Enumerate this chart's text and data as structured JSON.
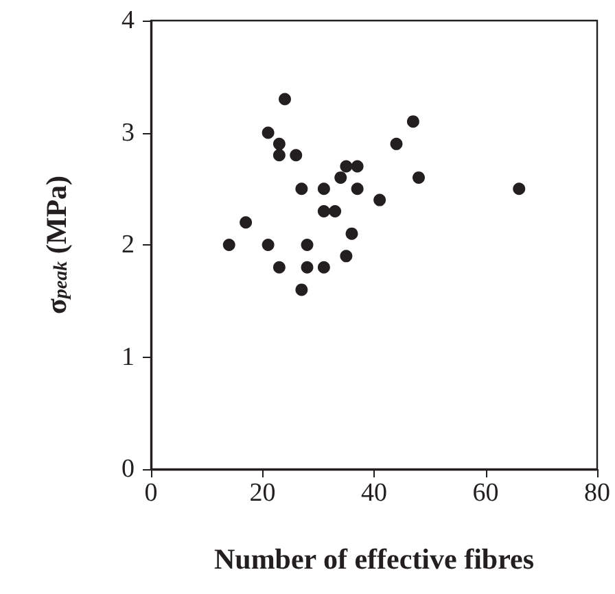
{
  "chart_data": {
    "type": "scatter",
    "xlabel": "Number of effective fibres",
    "ylabel": "σ$_{peak}$ (MPa)",
    "x": [
      14,
      17,
      21,
      21,
      23,
      23,
      23,
      24,
      26,
      27,
      27,
      28,
      28,
      31,
      31,
      31,
      33,
      34,
      35,
      35,
      36,
      37,
      37,
      41,
      44,
      47,
      48,
      66
    ],
    "series": [
      {
        "color": "#231f20",
        "values": [
          2.0,
          2.2,
          3.0,
          2.0,
          2.9,
          2.8,
          1.8,
          3.3,
          2.8,
          2.5,
          1.6,
          2.0,
          1.8,
          2.5,
          2.3,
          1.8,
          2.3,
          2.6,
          2.7,
          1.9,
          2.1,
          2.7,
          2.5,
          2.4,
          2.9,
          3.1,
          2.6,
          2.5
        ]
      }
    ],
    "xlim": [
      0,
      80
    ],
    "xticks": [
      0,
      20,
      40,
      60,
      80
    ],
    "ylim": [
      0,
      4
    ],
    "yticks": [
      0,
      1,
      2,
      3,
      4
    ],
    "grid": false,
    "marker": "circle"
  }
}
